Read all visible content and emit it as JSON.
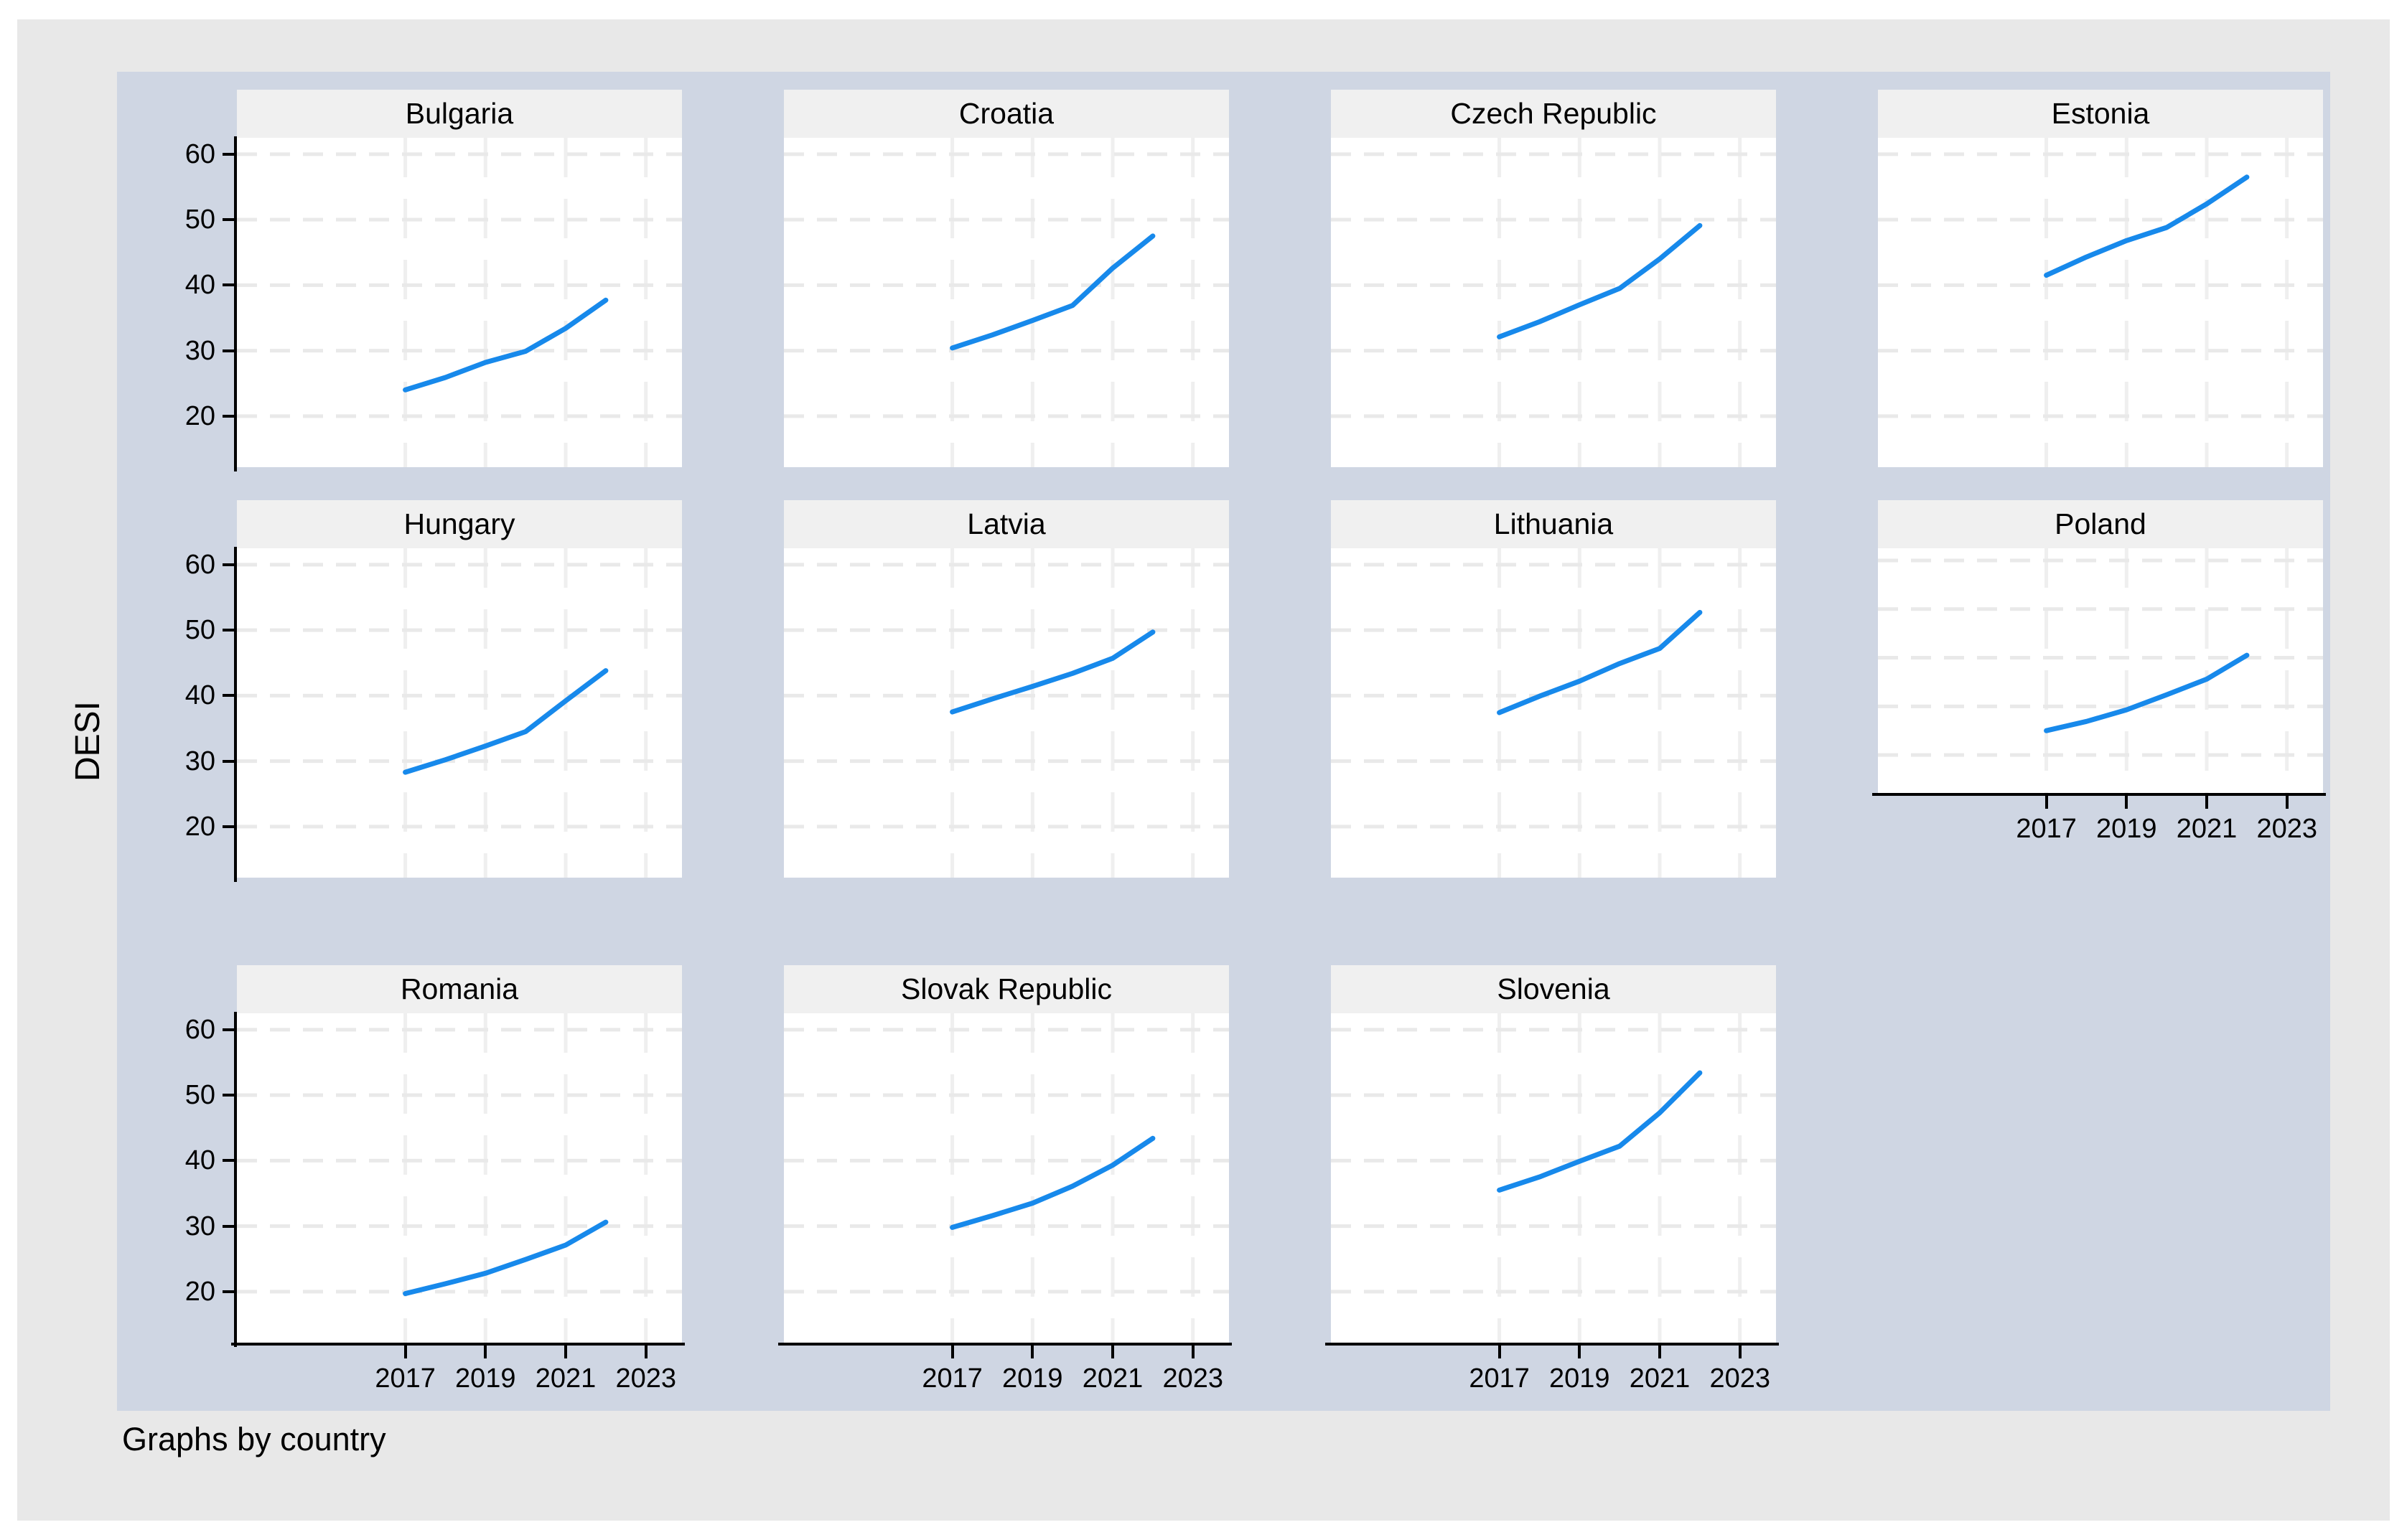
{
  "figure": {
    "ylabel": "DESI",
    "footer": "Graphs by country",
    "colors": {
      "page_bg": "#ffffff",
      "figure_bg": "#e8e8e8",
      "graph_region_bg": "#cfd6e3",
      "panel_header_bg": "#f0f0f0",
      "plot_bg": "#ffffff",
      "h_gridline": "#e9e9e9",
      "v_gridline": "#efefef",
      "axis": "#000000",
      "line": "#1789eb"
    }
  },
  "chart_data": {
    "type": "line",
    "title": "",
    "ylabel": "DESI",
    "xlabel": "",
    "footer": "Graphs by country",
    "x": [
      2017,
      2018,
      2019,
      2020,
      2021,
      2022
    ],
    "x_ticks": [
      2017,
      2019,
      2021,
      2023
    ],
    "y_ticks": [
      20,
      30,
      40,
      50,
      60
    ],
    "xlim": [
      2012.8,
      2023.9
    ],
    "ylim": [
      12.2,
      62.5
    ],
    "grid": true,
    "legend": "none",
    "panels": [
      {
        "title": "Bulgaria",
        "values": [
          24.0,
          25.9,
          28.2,
          29.9,
          33.4,
          37.7
        ]
      },
      {
        "title": "Croatia",
        "values": [
          30.4,
          32.4,
          34.6,
          36.9,
          42.6,
          47.5
        ]
      },
      {
        "title": "Czech Republic",
        "values": [
          32.1,
          34.4,
          37.0,
          39.5,
          44.0,
          49.1
        ]
      },
      {
        "title": "Estonia",
        "values": [
          41.5,
          44.3,
          46.8,
          48.8,
          52.4,
          56.5
        ]
      },
      {
        "title": "Hungary",
        "values": [
          28.3,
          30.2,
          32.3,
          34.5,
          39.2,
          43.8
        ]
      },
      {
        "title": "Latvia",
        "values": [
          37.5,
          39.5,
          41.4,
          43.4,
          45.7,
          49.7
        ]
      },
      {
        "title": "Lithuania",
        "values": [
          37.4,
          39.9,
          42.2,
          44.9,
          47.2,
          52.7
        ]
      },
      {
        "title": "Poland",
        "values": [
          25.0,
          26.9,
          29.3,
          32.4,
          35.6,
          40.5
        ]
      },
      {
        "title": "Romania",
        "values": [
          19.7,
          21.2,
          22.8,
          24.9,
          27.1,
          30.6
        ]
      },
      {
        "title": "Slovak Republic",
        "values": [
          29.8,
          31.6,
          33.5,
          36.1,
          39.3,
          43.4
        ]
      },
      {
        "title": "Slovenia",
        "values": [
          35.5,
          37.5,
          39.9,
          42.2,
          47.3,
          53.4
        ]
      }
    ]
  }
}
